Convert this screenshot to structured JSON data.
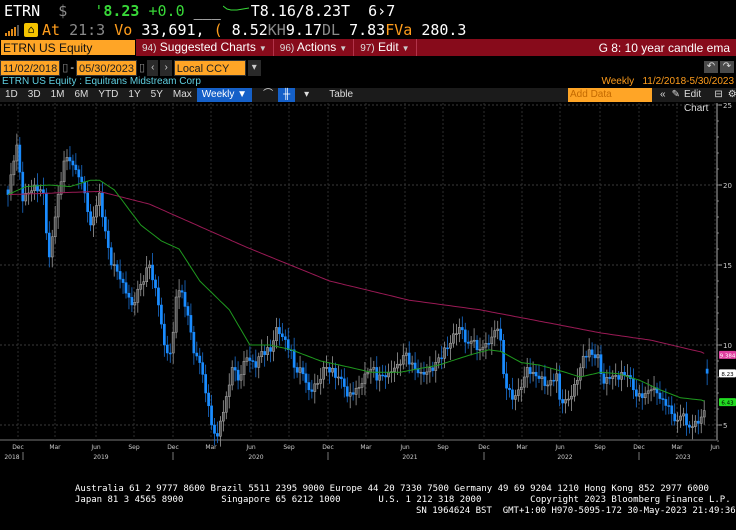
{
  "quote": {
    "ticker": "ETRN",
    "dollar": "$",
    "tick": "'",
    "last": "8.23",
    "change": "+0.0",
    "blank": "___",
    "bid": "T8.16",
    "ask": "/8.23T",
    "size": "6›7",
    "at_label": "At",
    "time": "21:3",
    "vol_label": "Vo",
    "volume": "33,691,",
    "open_label": "(",
    "open": "8.52",
    "high_label": "KH",
    "high": "9.17",
    "low_label": "DL",
    "low": "7.83",
    "val_label": "FVa",
    "value": "280.3"
  },
  "menubar": {
    "security": "ETRN US Equity",
    "items": [
      {
        "num": "94)",
        "label": "Suggested Charts"
      },
      {
        "num": "96)",
        "label": "Actions"
      },
      {
        "num": "97)",
        "label": "Edit"
      }
    ],
    "title": "G 8: 10 year candle ema"
  },
  "range": {
    "start": "11/02/2018",
    "end": "05/30/2023",
    "currency": "Local CCY",
    "prev": "‹",
    "next": "›"
  },
  "subtitle": {
    "security": "ETRN US Equity : Equitrans Midstream Corp",
    "period": "Weekly",
    "range": "11/2/2018-5/30/2023"
  },
  "toolbar": {
    "periods": [
      "1D",
      "3D",
      "1M",
      "6M",
      "YTD",
      "1Y",
      "5Y",
      "Max"
    ],
    "frequency": "Weekly ▼",
    "table": "Table",
    "add_data_placeholder": "Add Data",
    "collapse": "«",
    "edit_chart": "Edit Chart"
  },
  "colors": {
    "down": "#1a8cff",
    "up": "#8a8a8a",
    "ema_short": "#1f9a1f",
    "ema_long": "#9a1a55",
    "badge_long": "#e040a0",
    "badge_short": "#22dd22"
  },
  "chart_data": {
    "type": "candlestick",
    "title": "10 year candle ema",
    "frequency": "weekly",
    "ylim": [
      3.5,
      25
    ],
    "y_ticks": [
      5,
      10,
      15,
      20,
      25
    ],
    "x_month_ticks": [
      "Dec",
      "Mar",
      "Jun",
      "Sep",
      "Dec",
      "Mar",
      "Jun",
      "Sep",
      "Dec",
      "Mar",
      "Jun",
      "Sep",
      "Dec",
      "Mar",
      "Jun",
      "Sep",
      "Dec",
      "Mar",
      "Jun"
    ],
    "x_year_ticks": [
      "2018",
      "2019",
      "2020",
      "2021",
      "2022",
      "2023"
    ],
    "weekly_close_anchors": [
      [
        0,
        19.4
      ],
      [
        2,
        21.5
      ],
      [
        3,
        22.5
      ],
      [
        5,
        19
      ],
      [
        7,
        19.5
      ],
      [
        9,
        20
      ],
      [
        12,
        19.5
      ],
      [
        13,
        17
      ],
      [
        14,
        15.5
      ],
      [
        16,
        18
      ],
      [
        19,
        21.5
      ],
      [
        21,
        21.5
      ],
      [
        24,
        20.5
      ],
      [
        26,
        19.5
      ],
      [
        28,
        17.5
      ],
      [
        29,
        18
      ],
      [
        31,
        19.5
      ],
      [
        32,
        18
      ],
      [
        35,
        15
      ],
      [
        37,
        14.6
      ],
      [
        39,
        13.9
      ],
      [
        42,
        12.5
      ],
      [
        48,
        15
      ],
      [
        51,
        12.5
      ],
      [
        53,
        10
      ],
      [
        55,
        9.5
      ],
      [
        56,
        10.8
      ],
      [
        57,
        13
      ],
      [
        59,
        13.3
      ],
      [
        62,
        10.8
      ],
      [
        63,
        9.5
      ],
      [
        65,
        8.9
      ],
      [
        67,
        7
      ],
      [
        68,
        6.2
      ],
      [
        69,
        5
      ],
      [
        71,
        4.3
      ],
      [
        73,
        5.8
      ],
      [
        75,
        7.5
      ],
      [
        76,
        8.6
      ],
      [
        78,
        7.8
      ],
      [
        81,
        9.2
      ],
      [
        84,
        8.6
      ],
      [
        86,
        9.6
      ],
      [
        89,
        9.6
      ],
      [
        91,
        11.1
      ],
      [
        92,
        10.7
      ],
      [
        96,
        9.7
      ],
      [
        97,
        8.6
      ],
      [
        100,
        8.2
      ],
      [
        102,
        7.2
      ],
      [
        105,
        7.6
      ],
      [
        107,
        8.6
      ],
      [
        108,
        8.6
      ],
      [
        112,
        8
      ],
      [
        114,
        7.4
      ],
      [
        115,
        6.8
      ],
      [
        118,
        7.3
      ],
      [
        120,
        7.6
      ],
      [
        122,
        8.3
      ],
      [
        124,
        8.6
      ],
      [
        125,
        7.8
      ],
      [
        127,
        8.1
      ],
      [
        129,
        8.3
      ],
      [
        132,
        8.8
      ],
      [
        135,
        9.5
      ],
      [
        136,
        8.8
      ],
      [
        140,
        8.3
      ],
      [
        144,
        8.4
      ],
      [
        146,
        9.2
      ],
      [
        149,
        9.8
      ],
      [
        151,
        10.7
      ],
      [
        153,
        11.1
      ],
      [
        156,
        10.1
      ],
      [
        158,
        10.3
      ],
      [
        159,
        9.7
      ],
      [
        162,
        10.1
      ],
      [
        164,
        10.5
      ],
      [
        166,
        11
      ],
      [
        167,
        10.3
      ],
      [
        168,
        8.2
      ],
      [
        169,
        7.3
      ],
      [
        170,
        7.2
      ],
      [
        171,
        6.6
      ],
      [
        173,
        7.2
      ],
      [
        175,
        8
      ],
      [
        176,
        8.6
      ],
      [
        178,
        8.3
      ],
      [
        180,
        7.9
      ],
      [
        183,
        7.5
      ],
      [
        184,
        7.8
      ],
      [
        186,
        8.2
      ],
      [
        187,
        6.6
      ],
      [
        189,
        6.6
      ],
      [
        191,
        6.8
      ],
      [
        193,
        7.8
      ],
      [
        195,
        9.3
      ],
      [
        197,
        9.7
      ],
      [
        198,
        9.4
      ],
      [
        200,
        9.4
      ],
      [
        201,
        8.2
      ],
      [
        202,
        7.6
      ],
      [
        204,
        7.9
      ],
      [
        206,
        8.1
      ],
      [
        210,
        8.1
      ],
      [
        212,
        7.2
      ],
      [
        213,
        6.8
      ],
      [
        215,
        6.7
      ],
      [
        218,
        7.2
      ],
      [
        220,
        7
      ],
      [
        222,
        6.6
      ],
      [
        224,
        6.2
      ],
      [
        225,
        5.7
      ],
      [
        227,
        5.3
      ],
      [
        229,
        5.7
      ],
      [
        230,
        5
      ],
      [
        232,
        4.9
      ],
      [
        234,
        5.1
      ],
      [
        235,
        5.5
      ],
      [
        236,
        5.9
      ],
      [
        237,
        8.23
      ]
    ],
    "ema_long_anchors": [
      [
        0,
        19.4
      ],
      [
        31,
        19.6
      ],
      [
        48,
        18.8
      ],
      [
        81,
        16.1
      ],
      [
        109,
        14
      ],
      [
        136,
        12.8
      ],
      [
        160,
        12.2
      ],
      [
        187,
        11.25
      ],
      [
        201,
        10.75
      ],
      [
        218,
        10.3
      ],
      [
        235,
        9.56
      ],
      [
        237,
        9.384
      ]
    ],
    "ema_short_anchors": [
      [
        0,
        19.4
      ],
      [
        6,
        19.9
      ],
      [
        14,
        20
      ],
      [
        21,
        19.9
      ],
      [
        28,
        20.3
      ],
      [
        31,
        20.3
      ],
      [
        36,
        19.7
      ],
      [
        45,
        17.5
      ],
      [
        52,
        16.5
      ],
      [
        58,
        16
      ],
      [
        65,
        14
      ],
      [
        75,
        12.2
      ],
      [
        82,
        10
      ],
      [
        89,
        10
      ],
      [
        96,
        9.7
      ],
      [
        106,
        9
      ],
      [
        116,
        8.6
      ],
      [
        123,
        8.3
      ],
      [
        133,
        8.3
      ],
      [
        146,
        8.75
      ],
      [
        157,
        9.4
      ],
      [
        163,
        9.7
      ],
      [
        167,
        9.6
      ],
      [
        174,
        8.9
      ],
      [
        180,
        8.75
      ],
      [
        187,
        8.4
      ],
      [
        194,
        8
      ],
      [
        201,
        8.3
      ],
      [
        207,
        8.2
      ],
      [
        214,
        7.8
      ],
      [
        221,
        7.2
      ],
      [
        228,
        6.7
      ],
      [
        235,
        6.56
      ],
      [
        237,
        6.43
      ]
    ],
    "last_labels": {
      "ema_long": "9.384",
      "last": "8.23",
      "ema_short": "6.43"
    }
  },
  "footer": {
    "line1": "Australia 61 2 9777 8600 Brazil 5511 2395 9000 Europe 44 20 7330 7500 Germany 49 69 9204 1210 Hong Kong 852 2977 6000",
    "line2": "Japan 81 3 4565 8900       Singapore 65 6212 1000       U.S. 1 212 318 2000         Copyright 2023 Bloomberg Finance L.P.",
    "line3": "SN 1964624 BST  GMT+1:00 H970-5095-172 30-May-2023 21:49:36"
  }
}
